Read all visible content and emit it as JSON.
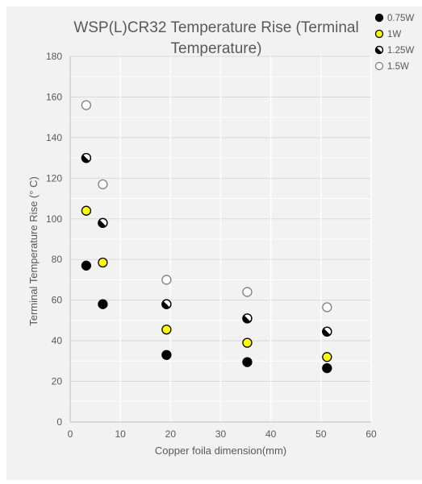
{
  "chart_data": {
    "type": "scatter",
    "title": "WSP(L)CR32 Temperature Rise (Terminal Temperature)",
    "title_lines": [
      "WSP(L)CR32 Temperature Rise (Terminal",
      "Temperature)"
    ],
    "xlabel": "Copper foila dimension(mm)",
    "ylabel": "Terminal Temperature Rise (° C)",
    "xlim": [
      0,
      60
    ],
    "ylim": [
      0,
      180
    ],
    "x_ticks": [
      0,
      10,
      20,
      30,
      40,
      50,
      60
    ],
    "y_ticks": [
      0,
      20,
      40,
      60,
      80,
      100,
      120,
      140,
      160,
      180
    ],
    "grid": true,
    "legend_position": "top-right",
    "series": [
      {
        "name": "0.75W",
        "marker": "filled",
        "color": "#000000",
        "points": [
          [
            3.2,
            77
          ],
          [
            6.5,
            58
          ],
          [
            19.2,
            33
          ],
          [
            35.3,
            29.5
          ],
          [
            51.2,
            26.5
          ]
        ]
      },
      {
        "name": "1W",
        "marker": "filled",
        "color": "#ffff00",
        "points": [
          [
            3.2,
            104
          ],
          [
            6.5,
            78.5
          ],
          [
            19.2,
            45.5
          ],
          [
            35.3,
            39
          ],
          [
            51.2,
            32
          ]
        ]
      },
      {
        "name": "1.25W",
        "marker": "half",
        "color": "#000000",
        "points": [
          [
            3.2,
            130
          ],
          [
            6.5,
            98
          ],
          [
            19.2,
            58
          ],
          [
            35.3,
            51
          ],
          [
            51.2,
            44.5
          ]
        ]
      },
      {
        "name": "1.5W",
        "marker": "hollow",
        "color": "#7f7f7f",
        "points": [
          [
            3.2,
            156
          ],
          [
            6.5,
            117
          ],
          [
            19.2,
            70
          ],
          [
            35.3,
            64
          ],
          [
            51.2,
            56.5
          ]
        ]
      }
    ]
  }
}
